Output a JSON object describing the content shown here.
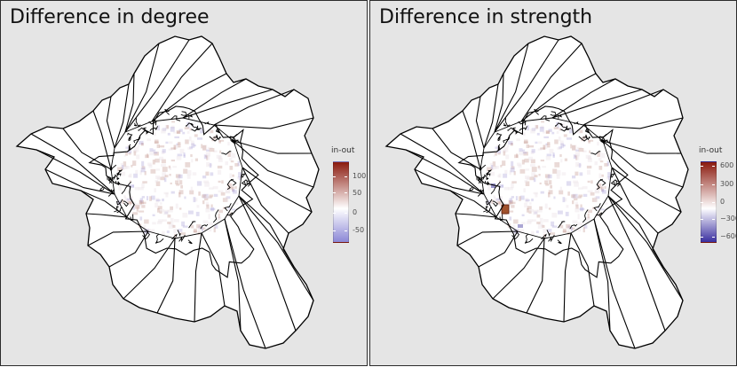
{
  "panels": [
    {
      "title": "Difference in degree",
      "legend": {
        "title": "in-out",
        "ticks": [
          "100",
          "50",
          "0",
          "-50"
        ],
        "colors": {
          "high": "#8b1a0e",
          "mid": "#ffffff",
          "low": "#8b87d6"
        }
      }
    },
    {
      "title": "Difference in strength",
      "legend": {
        "title": "in-out",
        "ticks": [
          "600",
          "300",
          "0",
          "−300",
          "−600"
        ],
        "colors": {
          "high": "#8b1a0e",
          "mid": "#ffffff",
          "low": "#3a2fa0"
        }
      }
    }
  ],
  "colors": {
    "panel_background": "#e5e5e5",
    "region_fill": "#ffffff",
    "boundary": "#000000"
  }
}
